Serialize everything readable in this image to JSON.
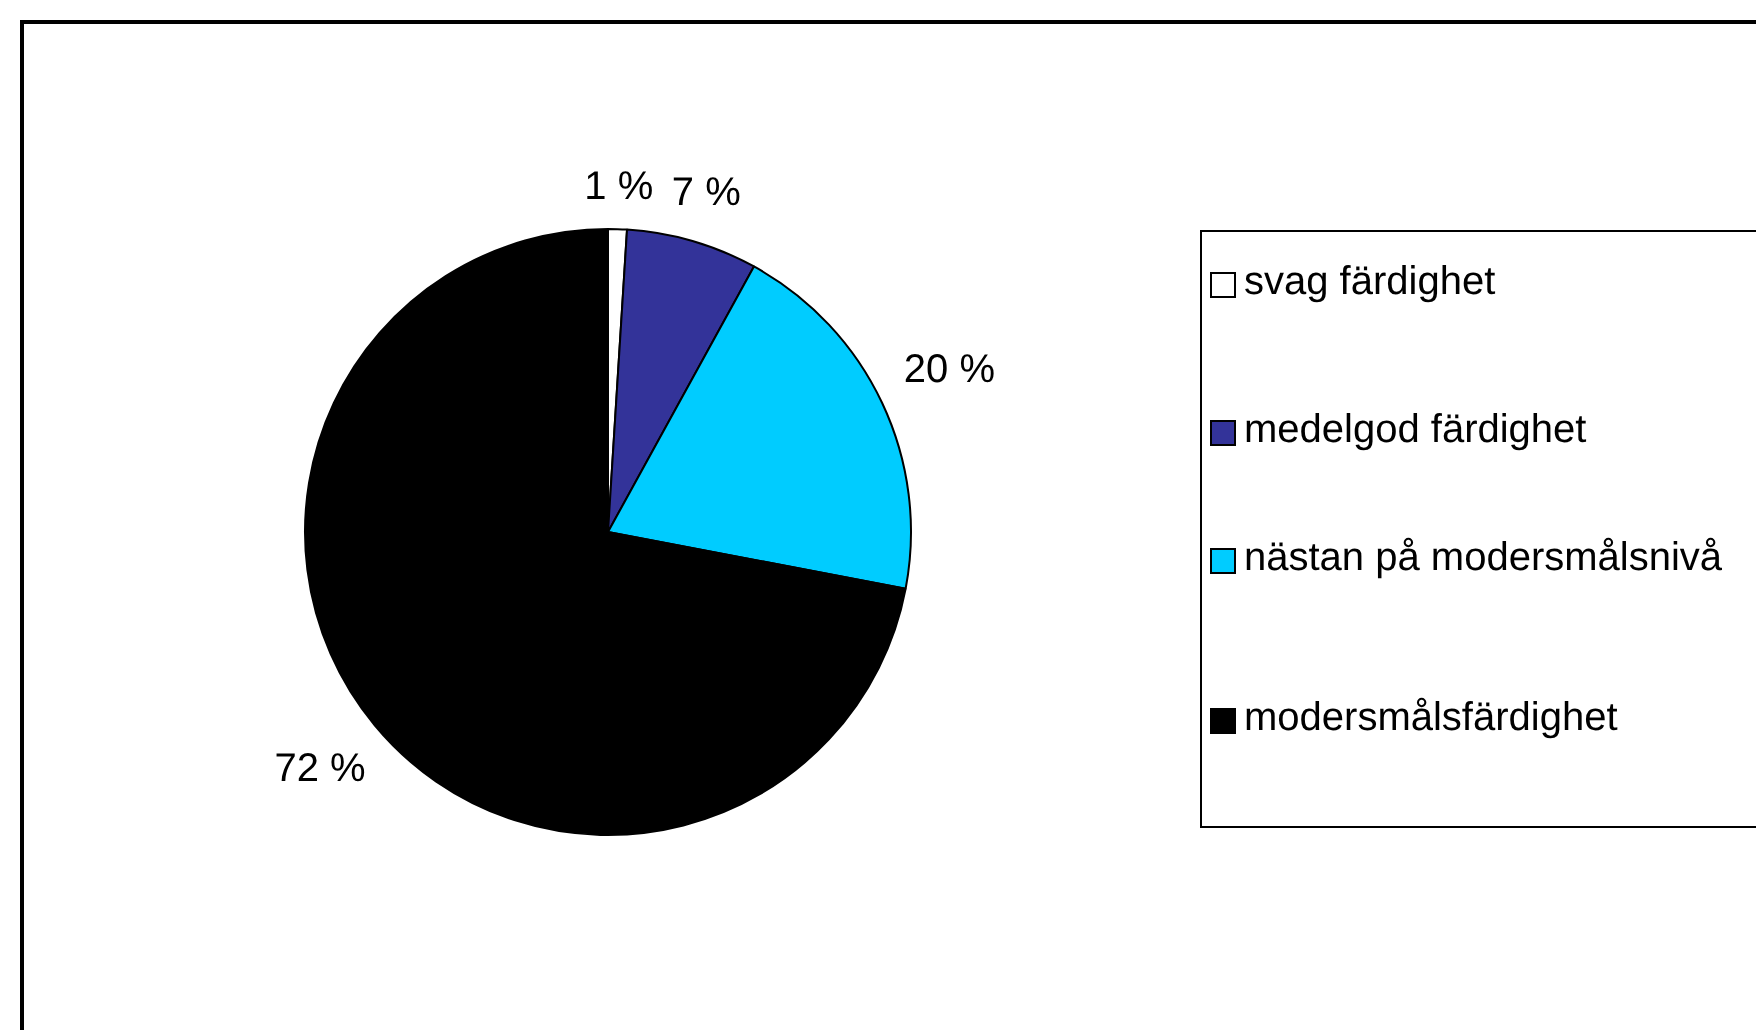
{
  "chart_data": {
    "type": "pie",
    "categories": [
      "svag färdighet",
      "medelgod färdighet",
      "nästan på modersmålsnivå",
      "modersmålsfärdighet"
    ],
    "values": [
      1,
      7,
      20,
      72
    ],
    "colors": [
      "#ffffff",
      "#333399",
      "#00ccff",
      "#000000"
    ],
    "value_labels": [
      "1 %",
      "7 %",
      "20 %",
      "72 %"
    ],
    "legend": "right"
  }
}
